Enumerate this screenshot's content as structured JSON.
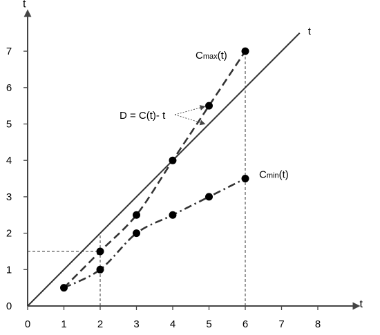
{
  "chart_data": {
    "type": "line",
    "title": "",
    "xlabel": "t",
    "ylabel": "t",
    "xlim": [
      0,
      8.2
    ],
    "ylim": [
      0,
      7.6
    ],
    "x_ticks": [
      0,
      1,
      2,
      3,
      4,
      5,
      6,
      7,
      8
    ],
    "y_ticks": [
      1,
      2,
      3,
      4,
      5,
      6,
      7
    ],
    "grid": false,
    "series": [
      {
        "name": "t",
        "style": "solid",
        "points": [
          [
            0,
            0
          ],
          [
            7.5,
            7.5
          ]
        ],
        "label": "t"
      },
      {
        "name": "Cmax(t)",
        "style": "dashed",
        "markers": [
          [
            1,
            0.5
          ],
          [
            2,
            1.5
          ],
          [
            3,
            2.5
          ],
          [
            4,
            4
          ],
          [
            5,
            5.5
          ],
          [
            6,
            7
          ]
        ],
        "label": {
          "main": "C",
          "sub": "max",
          "suffix": "(t)"
        }
      },
      {
        "name": "Cmin(t)",
        "style": "dash-dot",
        "markers": [
          [
            1,
            0.5
          ],
          [
            2,
            1
          ],
          [
            3,
            2
          ],
          [
            4,
            2.5
          ],
          [
            5,
            3
          ],
          [
            6,
            3.5
          ]
        ],
        "label": {
          "main": "C",
          "sub": "min",
          "suffix": "(t)"
        }
      }
    ],
    "annotations": [
      {
        "text": "D = C(t)- t",
        "arrows_to": [
          [
            5,
            5.5
          ],
          [
            5,
            5
          ]
        ]
      }
    ],
    "reference_lines": [
      {
        "type": "vertical",
        "x": 2,
        "from_y": 0,
        "to_y": 2
      },
      {
        "type": "horizontal",
        "y": 1.5,
        "from_x": 0,
        "to_x": 2
      },
      {
        "type": "vertical",
        "x": 6,
        "from_y": 0,
        "to_y": 7
      }
    ]
  }
}
